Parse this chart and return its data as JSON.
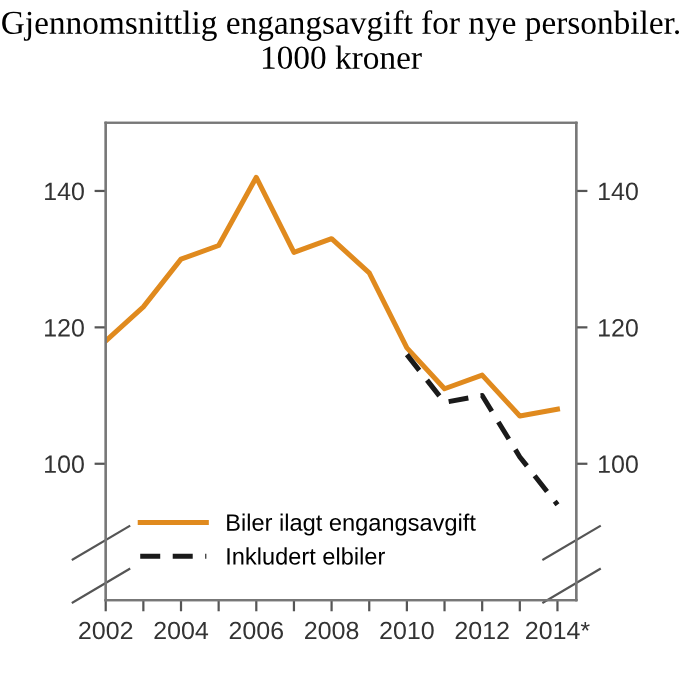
{
  "chart_data": {
    "type": "line",
    "title": "Gjennomsnittlig engangsavgift for nye personbiler. 1000 kroner",
    "x": [
      2002,
      2003,
      2004,
      2005,
      2006,
      2007,
      2008,
      2009,
      2010,
      2011,
      2012,
      2013,
      2014
    ],
    "series": [
      {
        "name": "Biler ilagt engangsavgift",
        "color": "#e08a1e",
        "line_style": "solid",
        "values": [
          118,
          123,
          130,
          132,
          142,
          131,
          133,
          128,
          117,
          111,
          113,
          107,
          108
        ]
      },
      {
        "name": "Inkludert elbiler",
        "color": "#1a1a1a",
        "line_style": "dashed",
        "values": [
          null,
          null,
          null,
          null,
          null,
          null,
          null,
          null,
          116,
          109,
          110,
          101,
          94
        ]
      }
    ],
    "xlim": [
      2002,
      2014.5
    ],
    "xticks": [
      2002,
      {
        "value": 2003,
        "label": null
      },
      2004,
      {
        "value": 2005,
        "label": null
      },
      2006,
      {
        "value": 2007,
        "label": null
      },
      2008,
      {
        "value": 2009,
        "label": null
      },
      2010,
      {
        "value": 2011,
        "label": null
      },
      2012,
      {
        "value": 2013,
        "label": null
      },
      {
        "value": 2014,
        "label": "2014*"
      }
    ],
    "ylim": [
      80,
      150
    ],
    "yticks": [
      100,
      120,
      140
    ],
    "y2lim": [
      80,
      150
    ],
    "y2ticks": [
      100,
      120,
      140
    ],
    "grid": false,
    "legend": "bottom",
    "marker": "none"
  }
}
